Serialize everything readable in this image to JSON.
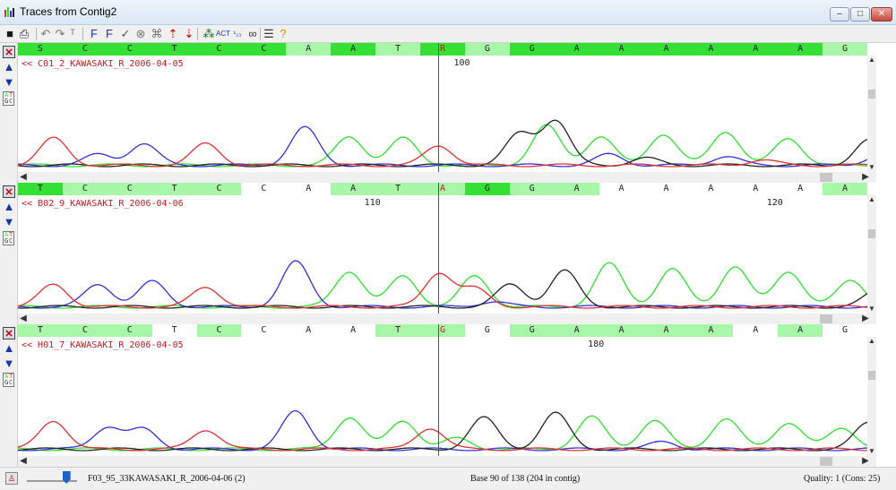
{
  "window": {
    "title": "Traces from Contig2",
    "minimize_glyph": "–",
    "maximize_glyph": "□",
    "close_glyph": "✕"
  },
  "toolbar": {
    "icons": [
      {
        "name": "save-icon",
        "glyph": "■",
        "color": "#1a1a1a"
      },
      {
        "name": "print-icon",
        "glyph": "⎙",
        "color": "#1a1a1a"
      },
      {
        "name": "undo-icon",
        "glyph": "↶",
        "color": "#777777"
      },
      {
        "name": "redo-icon",
        "glyph": "↷",
        "color": "#777777"
      },
      {
        "name": "trim-icon",
        "glyph": "ᵀ",
        "color": "#777777"
      },
      {
        "name": "find-forward-icon",
        "glyph": "F",
        "color": "#1a35a8"
      },
      {
        "name": "find-next-icon",
        "glyph": "F",
        "color": "#1a35a8"
      },
      {
        "name": "accept-icon",
        "glyph": "✓",
        "color": "#555555"
      },
      {
        "name": "reject-icon",
        "glyph": "⊗",
        "color": "#777777"
      },
      {
        "name": "delete-trace-icon",
        "glyph": "⌘",
        "color": "#777777"
      },
      {
        "name": "mark-left-icon",
        "glyph": "⇡",
        "color": "#c00000"
      },
      {
        "name": "mark-right-icon",
        "glyph": "⇣",
        "color": "#c00000"
      },
      {
        "name": "bases-icon",
        "glyph": "⁂",
        "color": "#1a6a1a"
      },
      {
        "name": "sequence-icon",
        "glyph": "ACT",
        "color": "#1a35a8"
      },
      {
        "name": "numbering-icon",
        "glyph": "¹₂₃",
        "color": "#1a35a8"
      },
      {
        "name": "link-icon",
        "glyph": "∞",
        "color": "#333333"
      },
      {
        "name": "list-icon",
        "glyph": "☰",
        "color": "#333333"
      },
      {
        "name": "help-icon",
        "glyph": "?",
        "color": "#c89b00"
      }
    ]
  },
  "colors": {
    "green_high": "#35e035",
    "green_low": "#a8f7a8",
    "trace_a": "#2ee02e",
    "trace_c": "#3030dd",
    "trace_g": "#222222",
    "trace_t": "#e03030",
    "cursor": "#3949c8",
    "name_red": "#d01515"
  },
  "traces": [
    {
      "name": "<< C01_2_KAWASAKI_R_2006-04-05",
      "positions": [
        {
          "label": "100",
          "col": 9
        }
      ],
      "bases": [
        {
          "b": "S",
          "s": "high"
        },
        {
          "b": "C",
          "s": "high"
        },
        {
          "b": "C",
          "s": "high"
        },
        {
          "b": "T",
          "s": "high"
        },
        {
          "b": "C",
          "s": "high"
        },
        {
          "b": "C",
          "s": "high"
        },
        {
          "b": "A",
          "s": "low"
        },
        {
          "b": "A",
          "s": "high"
        },
        {
          "b": "T",
          "s": "low"
        },
        {
          "b": "R",
          "s": "high"
        },
        {
          "b": "G",
          "s": "low"
        },
        {
          "b": "G",
          "s": "high"
        },
        {
          "b": "A",
          "s": "high"
        },
        {
          "b": "A",
          "s": "high"
        },
        {
          "b": "A",
          "s": "high"
        },
        {
          "b": "A",
          "s": "high"
        },
        {
          "b": "A",
          "s": "high"
        },
        {
          "b": "A",
          "s": "high"
        },
        {
          "b": "G",
          "s": "low"
        }
      ]
    },
    {
      "name": "<< B02_9_KAWASAKI_R_2006-04-06",
      "positions": [
        {
          "label": "110",
          "col": 7
        },
        {
          "label": "120",
          "col": 16
        }
      ],
      "bases": [
        {
          "b": "T",
          "s": "high"
        },
        {
          "b": "C",
          "s": "low"
        },
        {
          "b": "C",
          "s": "low"
        },
        {
          "b": "T",
          "s": "low"
        },
        {
          "b": "C",
          "s": "low"
        },
        {
          "b": "C",
          "s": "none"
        },
        {
          "b": "A",
          "s": "none"
        },
        {
          "b": "A",
          "s": "low"
        },
        {
          "b": "T",
          "s": "low"
        },
        {
          "b": "A",
          "s": "low"
        },
        {
          "b": "G",
          "s": "high"
        },
        {
          "b": "G",
          "s": "low"
        },
        {
          "b": "A",
          "s": "low"
        },
        {
          "b": "A",
          "s": "none"
        },
        {
          "b": "A",
          "s": "none"
        },
        {
          "b": "A",
          "s": "none"
        },
        {
          "b": "A",
          "s": "none"
        },
        {
          "b": "A",
          "s": "none"
        },
        {
          "b": "A",
          "s": "low"
        }
      ]
    },
    {
      "name": "<< H01_7_KAWASAKI_R_2006-04-05",
      "positions": [
        {
          "label": "180",
          "col": 12
        }
      ],
      "bases": [
        {
          "b": "T",
          "s": "low"
        },
        {
          "b": "C",
          "s": "low"
        },
        {
          "b": "C",
          "s": "low"
        },
        {
          "b": "T",
          "s": "none"
        },
        {
          "b": "C",
          "s": "low"
        },
        {
          "b": "C",
          "s": "none"
        },
        {
          "b": "A",
          "s": "none"
        },
        {
          "b": "A",
          "s": "none"
        },
        {
          "b": "T",
          "s": "low"
        },
        {
          "b": "G",
          "s": "low"
        },
        {
          "b": "G",
          "s": "none"
        },
        {
          "b": "G",
          "s": "low"
        },
        {
          "b": "A",
          "s": "low"
        },
        {
          "b": "A",
          "s": "low"
        },
        {
          "b": "A",
          "s": "low"
        },
        {
          "b": "A",
          "s": "low"
        },
        {
          "b": "A",
          "s": "none"
        },
        {
          "b": "A",
          "s": "low"
        },
        {
          "b": "G",
          "s": "none"
        }
      ]
    }
  ],
  "side_nucleotides": "ATGC",
  "status": {
    "trace_name": "F03_95_33KAWASAKI_R_2006-04-06 (2)",
    "base_info": "Base 90 of 138 (204 in contig)",
    "quality": "Quality: 1 (Cons: 25)",
    "zoom_fraction": 0.78
  }
}
